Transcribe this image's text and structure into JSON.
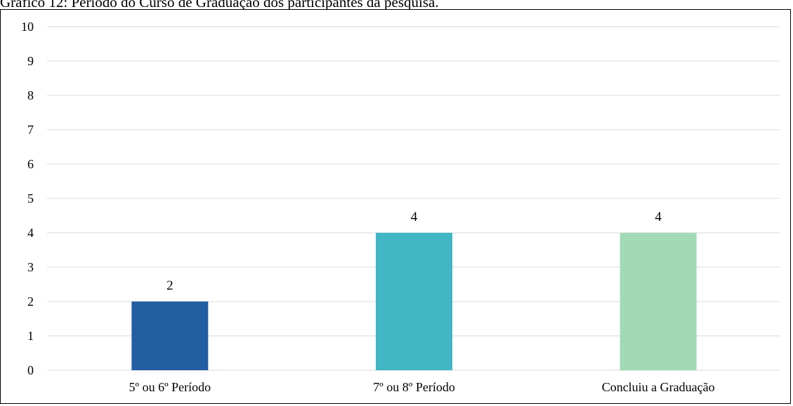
{
  "caption": "Gráfico 12: Período do Curso de Graduação dos participantes da pesquisa.",
  "chart_data": {
    "type": "bar",
    "title": "",
    "xlabel": "",
    "ylabel": "",
    "categories": [
      "5º ou 6º Período",
      "7º ou 8º Período",
      "Concluiu a Graduação"
    ],
    "values": [
      2,
      4,
      4
    ],
    "colors": [
      "#235ea3",
      "#41b6c4",
      "#a1dab4"
    ],
    "ylim": [
      0,
      10
    ],
    "yticks": [
      "0",
      "1",
      "2",
      "3",
      "4",
      "5",
      "6",
      "7",
      "8",
      "9",
      "10"
    ],
    "grid": true,
    "legend": "none"
  }
}
